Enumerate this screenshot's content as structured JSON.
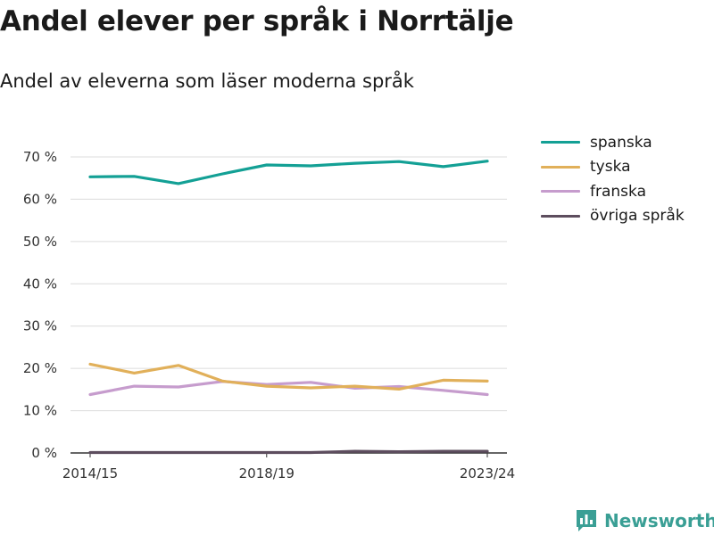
{
  "title": "Andel elever per språk i Norrtälje",
  "subtitle": "Andel av eleverna som läser moderna språk",
  "brand": {
    "name": "Newsworthy",
    "icon": "bar-chart-icon",
    "color": "#3a9f95"
  },
  "chart_data": {
    "type": "line",
    "x_count": 10,
    "xtick_labels": [
      {
        "index": 0,
        "label": "2014/15"
      },
      {
        "index": 4,
        "label": "2018/19"
      },
      {
        "index": 9,
        "label": "2023/24"
      }
    ],
    "ylim": [
      0,
      70
    ],
    "yticks": [
      0,
      10,
      20,
      30,
      40,
      50,
      60,
      70
    ],
    "ytick_labels": [
      "0 %",
      "10 %",
      "20 %",
      "30 %",
      "40 %",
      "50 %",
      "60 %",
      "70 %"
    ],
    "grid": true,
    "legend_position": "right",
    "series": [
      {
        "name": "spanska",
        "color": "#13a095",
        "values": [
          65.3,
          65.4,
          63.7,
          66.0,
          68.1,
          67.9,
          68.5,
          68.9,
          67.7,
          69.0
        ]
      },
      {
        "name": "tyska",
        "color": "#e1b05a",
        "values": [
          21.0,
          18.9,
          20.7,
          17.0,
          15.8,
          15.4,
          15.8,
          15.1,
          17.2,
          17.0
        ]
      },
      {
        "name": "franska",
        "color": "#c69ccd",
        "values": [
          13.8,
          15.8,
          15.6,
          16.9,
          16.2,
          16.7,
          15.3,
          15.7,
          14.8,
          13.8
        ]
      },
      {
        "name": "övriga språk",
        "color": "#5d4d5e",
        "values": [
          0.1,
          0.1,
          0.1,
          0.1,
          0.1,
          0.1,
          0.4,
          0.3,
          0.4,
          0.4
        ]
      }
    ]
  }
}
